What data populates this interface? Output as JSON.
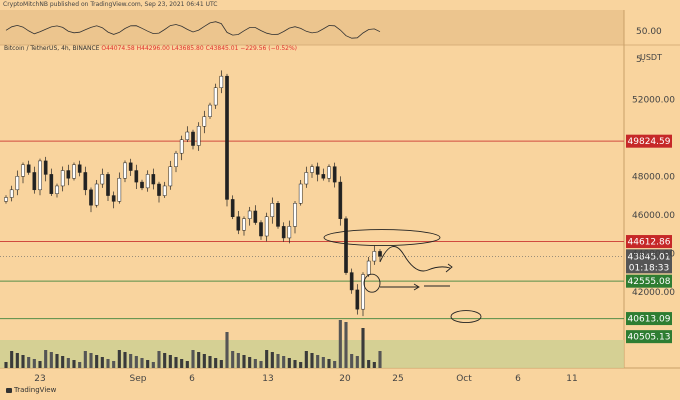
{
  "header": {
    "publisher_line": "CryptoMitchNB published on TradingView.com, Sep 23, 2021 06:41 UTC"
  },
  "symbol_line": {
    "name": "Bitcoin / TetherUS, 4h, BINANCE",
    "ohlc": "O44074.58 H44296.00 L43685.80 C43845.01 −229.56 (−0.52%)"
  },
  "watermark": "TradingView",
  "chart_data": [
    {
      "type": "line",
      "title": "",
      "panel": "oscillator",
      "y_tick_labels": [
        "50.00"
      ],
      "y_partial_label": "5."
    },
    {
      "type": "candlestick",
      "title": "",
      "panel": "price",
      "pair": "BTC/USDT",
      "timeframe": "4h",
      "exchange": "BINANCE",
      "unit_label": "USDT",
      "x_tick_labels": [
        "23",
        "Sep",
        "6",
        "13",
        "20",
        "25",
        "Oct",
        "6",
        "11"
      ],
      "y_tick_labels": [
        "52000.00",
        "48000.00",
        "46000.00",
        "44000.00",
        "42000.00"
      ],
      "ylim": [
        39500,
        54300
      ],
      "grid": false,
      "horizontal_levels": [
        {
          "value": 49824.59,
          "label": "49824.59",
          "color": "#c62828",
          "style": "solid"
        },
        {
          "value": 44612.86,
          "label": "44612.86",
          "color": "#c62828",
          "style": "solid"
        },
        {
          "value": 42555.08,
          "label": "42555.08",
          "color": "#2e7d32",
          "style": "solid"
        },
        {
          "value": 40613.09,
          "label": "40613.09",
          "color": "#2e7d32",
          "style": "solid"
        }
      ],
      "current_price": {
        "value": 43845.01,
        "label": "43845.01",
        "countdown": "01:18:33"
      },
      "extra_labels": [
        {
          "value": 40505.13,
          "label": "40505.13"
        }
      ],
      "approx_closes": [
        46900,
        47300,
        48000,
        48600,
        48200,
        47300,
        48800,
        48100,
        47100,
        47500,
        48300,
        47900,
        48600,
        48200,
        47300,
        46500,
        47600,
        48100,
        47000,
        46700,
        47900,
        48700,
        48300,
        47700,
        47400,
        48100,
        47600,
        47000,
        47500,
        48500,
        49200,
        49900,
        50300,
        49600,
        50600,
        51100,
        51700,
        52600,
        53200,
        46800,
        45900,
        45200,
        45800,
        46200,
        45600,
        44900,
        45900,
        46600,
        45400,
        44800,
        45400,
        46600,
        47600,
        48200,
        48500,
        48100,
        47900,
        48500,
        47700,
        45800,
        43000,
        42100,
        41100,
        42900,
        43600,
        44100,
        43845
      ],
      "annotations": [
        "ellipse around consolidation near 44612.86",
        "ellipse around low near 42555.08",
        "ellipse near 40613.09",
        "projected path arrow",
        "arrow toward 42555.08 level"
      ]
    }
  ]
}
